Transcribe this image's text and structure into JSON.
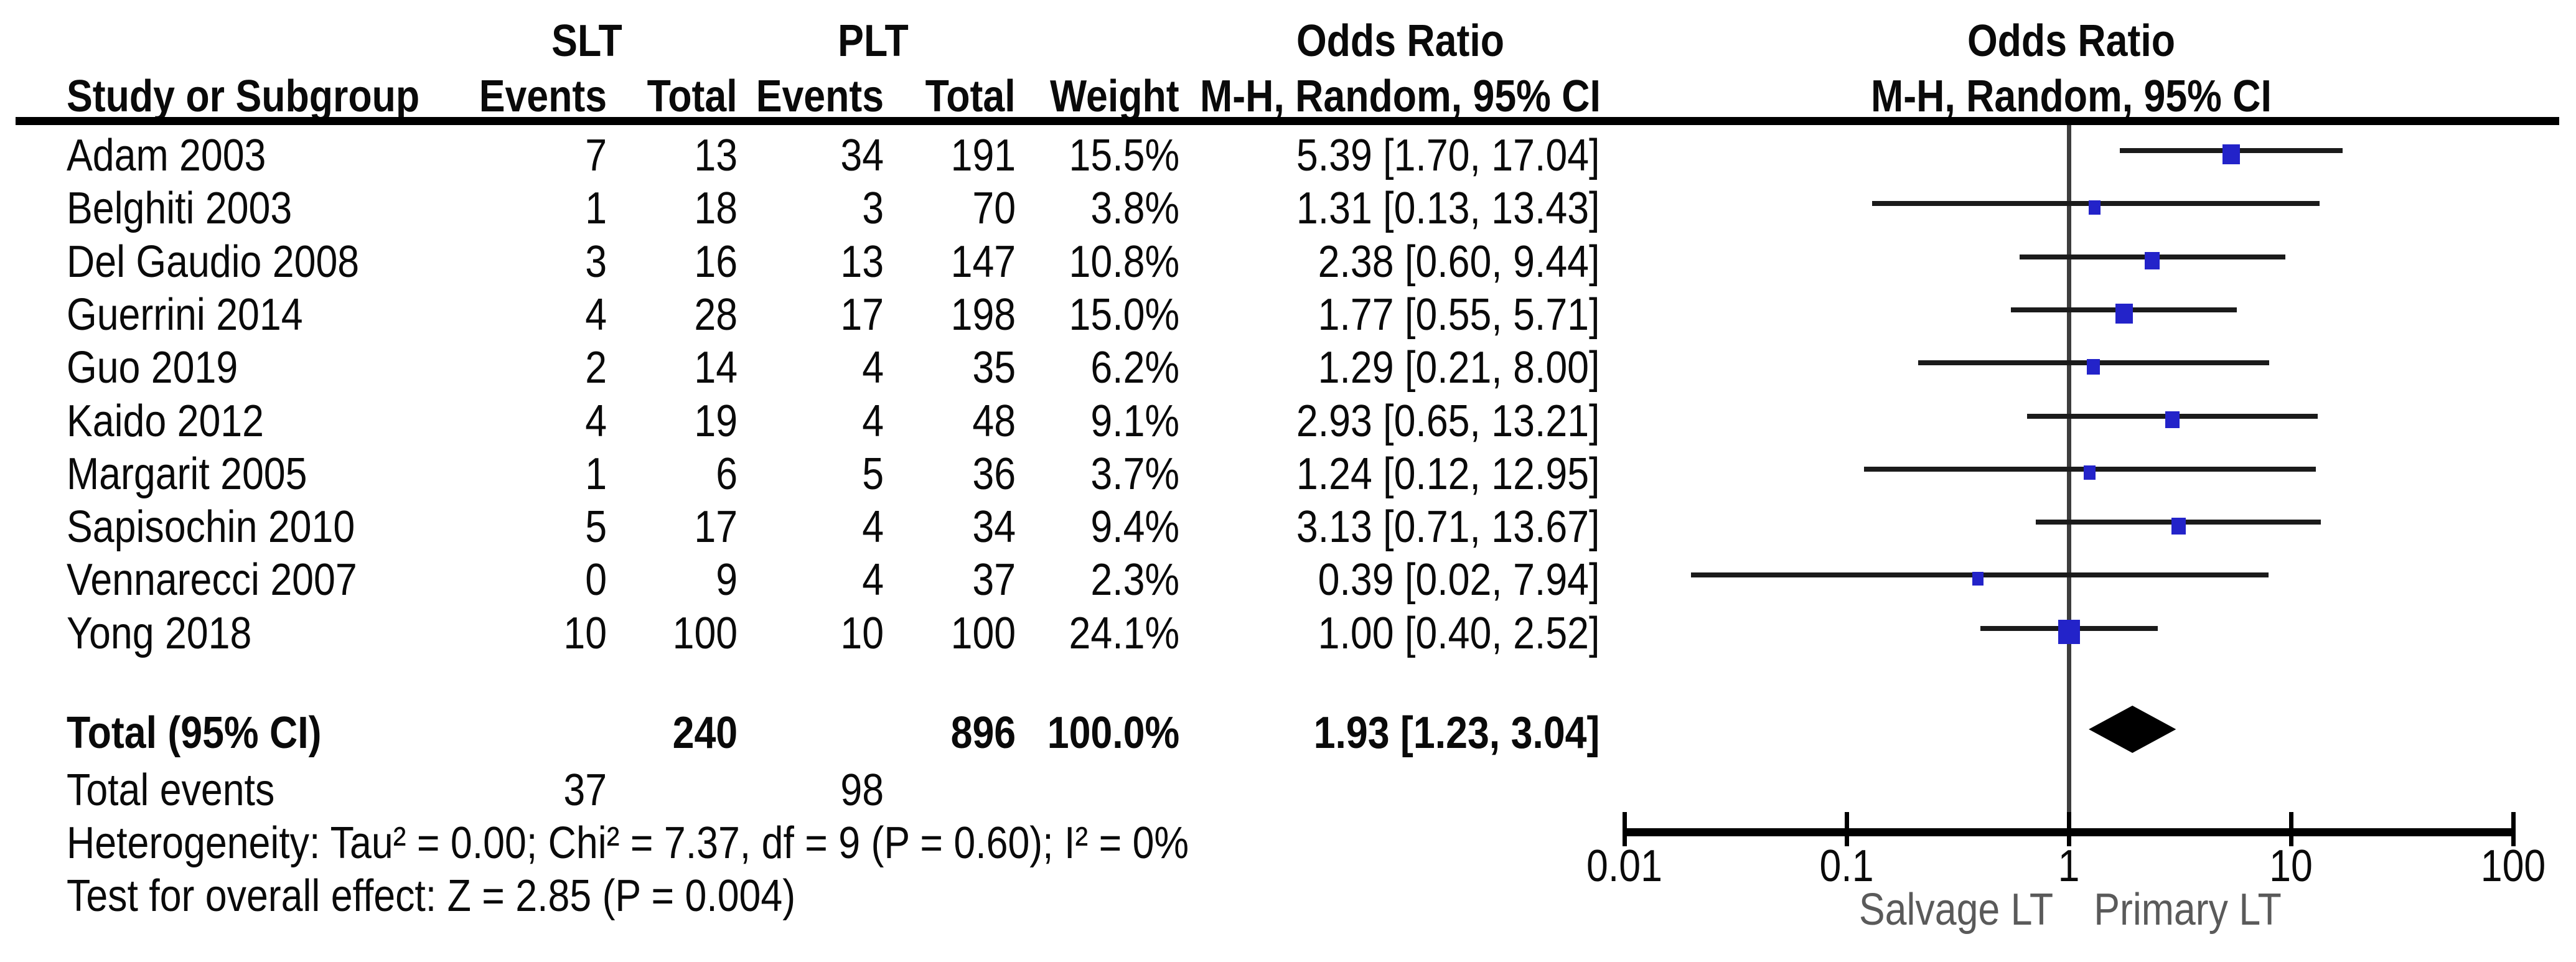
{
  "header": {
    "group_slt": "SLT",
    "group_plt": "PLT",
    "col_study": "Study or Subgroup",
    "col_events": "Events",
    "col_total": "Total",
    "col_weight": "Weight",
    "or_title": "Odds Ratio",
    "or_subtitle": "M-H, Random, 95% CI"
  },
  "chart_data": {
    "type": "forest",
    "effect_measure": "Odds Ratio",
    "method": "M-H, Random, 95% CI",
    "x_scale": "log10",
    "xlim": [
      0.01,
      100
    ],
    "x_ticks": [
      "0.01",
      "0.1",
      "1",
      "10",
      "100"
    ],
    "no_effect_line": 1,
    "axis_labels": {
      "left": "Salvage LT",
      "right": "Primary LT"
    },
    "studies": [
      {
        "name": "Adam 2003",
        "slt_events": "7",
        "slt_total": "13",
        "plt_events": "34",
        "plt_total": "191",
        "weight": "15.5%",
        "or": 5.39,
        "ci_lo": 1.7,
        "ci_hi": 17.04,
        "or_text": "5.39 [1.70, 17.04]"
      },
      {
        "name": "Belghiti 2003",
        "slt_events": "1",
        "slt_total": "18",
        "plt_events": "3",
        "plt_total": "70",
        "weight": "3.8%",
        "or": 1.31,
        "ci_lo": 0.13,
        "ci_hi": 13.43,
        "or_text": "1.31 [0.13, 13.43]"
      },
      {
        "name": "Del Gaudio 2008",
        "slt_events": "3",
        "slt_total": "16",
        "plt_events": "13",
        "plt_total": "147",
        "weight": "10.8%",
        "or": 2.38,
        "ci_lo": 0.6,
        "ci_hi": 9.44,
        "or_text": "2.38 [0.60, 9.44]"
      },
      {
        "name": "Guerrini 2014",
        "slt_events": "4",
        "slt_total": "28",
        "plt_events": "17",
        "plt_total": "198",
        "weight": "15.0%",
        "or": 1.77,
        "ci_lo": 0.55,
        "ci_hi": 5.71,
        "or_text": "1.77 [0.55, 5.71]"
      },
      {
        "name": "Guo 2019",
        "slt_events": "2",
        "slt_total": "14",
        "plt_events": "4",
        "plt_total": "35",
        "weight": "6.2%",
        "or": 1.29,
        "ci_lo": 0.21,
        "ci_hi": 8.0,
        "or_text": "1.29 [0.21, 8.00]"
      },
      {
        "name": "Kaido 2012",
        "slt_events": "4",
        "slt_total": "19",
        "plt_events": "4",
        "plt_total": "48",
        "weight": "9.1%",
        "or": 2.93,
        "ci_lo": 0.65,
        "ci_hi": 13.21,
        "or_text": "2.93 [0.65, 13.21]"
      },
      {
        "name": "Margarit 2005",
        "slt_events": "1",
        "slt_total": "6",
        "plt_events": "5",
        "plt_total": "36",
        "weight": "3.7%",
        "or": 1.24,
        "ci_lo": 0.12,
        "ci_hi": 12.95,
        "or_text": "1.24 [0.12, 12.95]"
      },
      {
        "name": "Sapisochin 2010",
        "slt_events": "5",
        "slt_total": "17",
        "plt_events": "4",
        "plt_total": "34",
        "weight": "9.4%",
        "or": 3.13,
        "ci_lo": 0.71,
        "ci_hi": 13.67,
        "or_text": "3.13 [0.71, 13.67]"
      },
      {
        "name": "Vennarecci 2007",
        "slt_events": "0",
        "slt_total": "9",
        "plt_events": "4",
        "plt_total": "37",
        "weight": "2.3%",
        "or": 0.39,
        "ci_lo": 0.02,
        "ci_hi": 7.94,
        "or_text": "0.39 [0.02, 7.94]"
      },
      {
        "name": "Yong 2018",
        "slt_events": "10",
        "slt_total": "100",
        "plt_events": "10",
        "plt_total": "100",
        "weight": "24.1%",
        "or": 1.0,
        "ci_lo": 0.4,
        "ci_hi": 2.52,
        "or_text": "1.00 [0.40, 2.52]"
      }
    ],
    "total": {
      "label": "Total (95% CI)",
      "slt_total": "240",
      "plt_total": "896",
      "weight": "100.0%",
      "or": 1.93,
      "ci_lo": 1.23,
      "ci_hi": 3.04,
      "or_text": "1.93 [1.23, 3.04]"
    },
    "total_events": {
      "label": "Total events",
      "slt": "37",
      "plt": "98"
    },
    "footnotes": {
      "heterogeneity": "Heterogeneity: Tau² = 0.00; Chi² = 7.37, df = 9 (P = 0.60); I² = 0%",
      "overall_effect": "Test for overall effect: Z = 2.85 (P = 0.004)"
    }
  },
  "colors": {
    "marker_blue": "#2323c9",
    "diamond_black": "#000000",
    "ci_line": "#1b1b1b",
    "no_effect_line": "#3d3d3d",
    "axis": "#000000",
    "text": "#0a0a0a",
    "muted_label": "#5a5a5a"
  }
}
